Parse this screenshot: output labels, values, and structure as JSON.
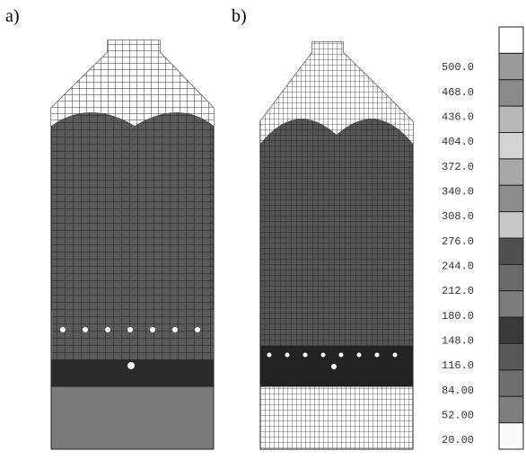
{
  "panels": {
    "a": "a)",
    "b": "b)"
  },
  "legend": {
    "labels": [
      "500.0",
      "468.0",
      "436.0",
      "404.0",
      "372.0",
      "340.0",
      "308.0",
      "276.0",
      "244.0",
      "212.0",
      "180.0",
      "148.0",
      "116.0",
      "84.00",
      "52.00",
      "20.00"
    ]
  }
}
